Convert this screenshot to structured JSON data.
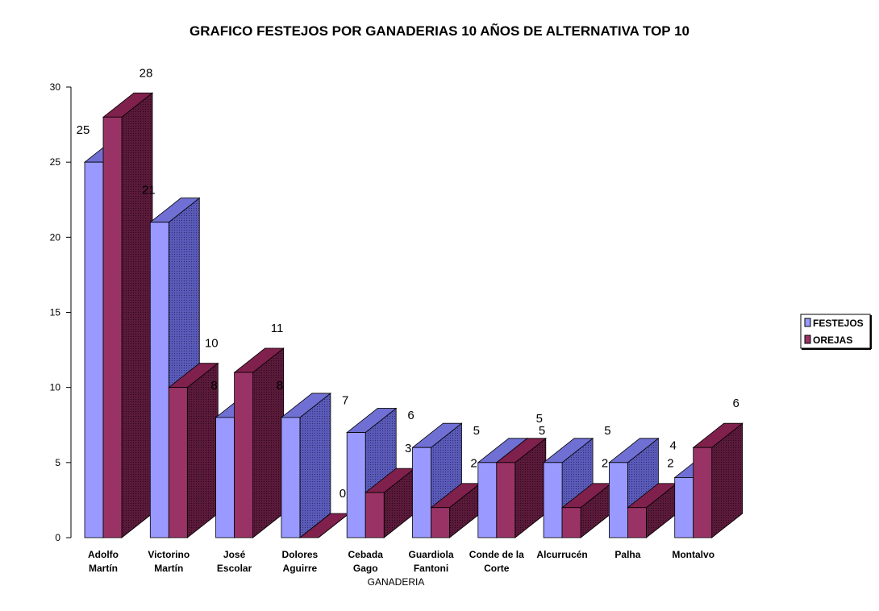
{
  "chart_data": {
    "type": "bar",
    "title": "GRAFICO FESTEJOS POR GANADERIAS 10 AÑOS DE ALTERNATIVA TOP 10",
    "xlabel": "GANADERIA",
    "ylabel": "",
    "ylim": [
      0,
      30
    ],
    "yticks": [
      0,
      5,
      10,
      15,
      20,
      25,
      30
    ],
    "categories": [
      [
        "Adolfo",
        "Martín"
      ],
      [
        "Victorino",
        "Martín"
      ],
      [
        "José",
        "Escolar"
      ],
      [
        "Dolores",
        "Aguirre"
      ],
      [
        "Cebada",
        "Gago"
      ],
      [
        "Guardiola",
        "Fantoni"
      ],
      [
        "Conde de la",
        "Corte"
      ],
      [
        "Alcurrucén"
      ],
      [
        "Palha"
      ],
      [
        "Montalvo"
      ]
    ],
    "series": [
      {
        "name": "FESTEJOS",
        "values": [
          25,
          21,
          8,
          8,
          7,
          6,
          5,
          5,
          5,
          4
        ],
        "color": "#9999ff"
      },
      {
        "name": "OREJAS",
        "values": [
          28,
          10,
          11,
          0,
          3,
          2,
          5,
          2,
          2,
          6
        ],
        "color": "#993366"
      }
    ],
    "legend_position": "right",
    "grid": false
  }
}
